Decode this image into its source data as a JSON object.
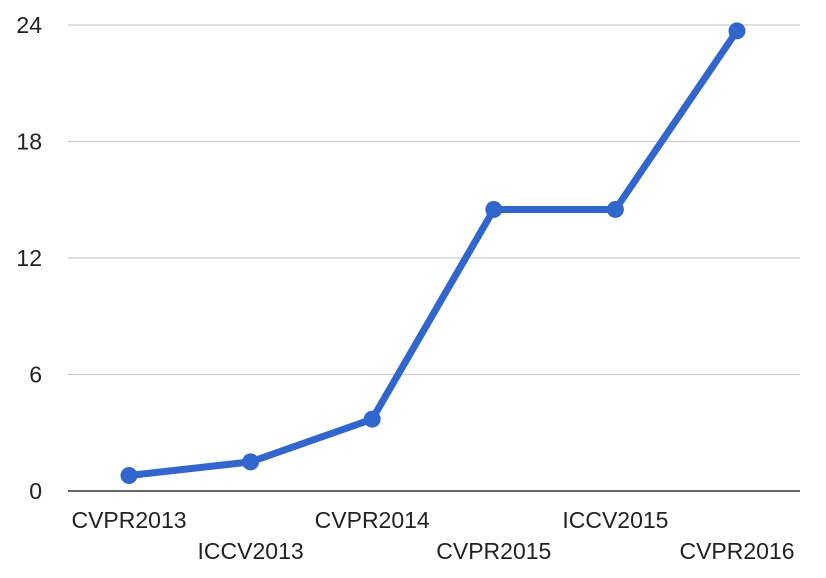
{
  "chart_data": {
    "type": "line",
    "title": "",
    "xlabel": "",
    "ylabel": "",
    "categories": [
      "CVPR2013",
      "ICCV2013",
      "CVPR2014",
      "CVPR2015",
      "ICCV2015",
      "CVPR2016"
    ],
    "series": [
      {
        "values": [
          0.8,
          1.5,
          3.7,
          14.5,
          14.5,
          23.7
        ],
        "color": "#3366cc"
      }
    ],
    "ylim": [
      0,
      24
    ],
    "yticks": [
      "0",
      "6",
      "12",
      "18",
      "24"
    ],
    "grid": true,
    "legend": "none",
    "colors": {
      "line": "#3366cc",
      "grid": "#cccccc",
      "axis": "#333333",
      "text": "#222222"
    }
  }
}
